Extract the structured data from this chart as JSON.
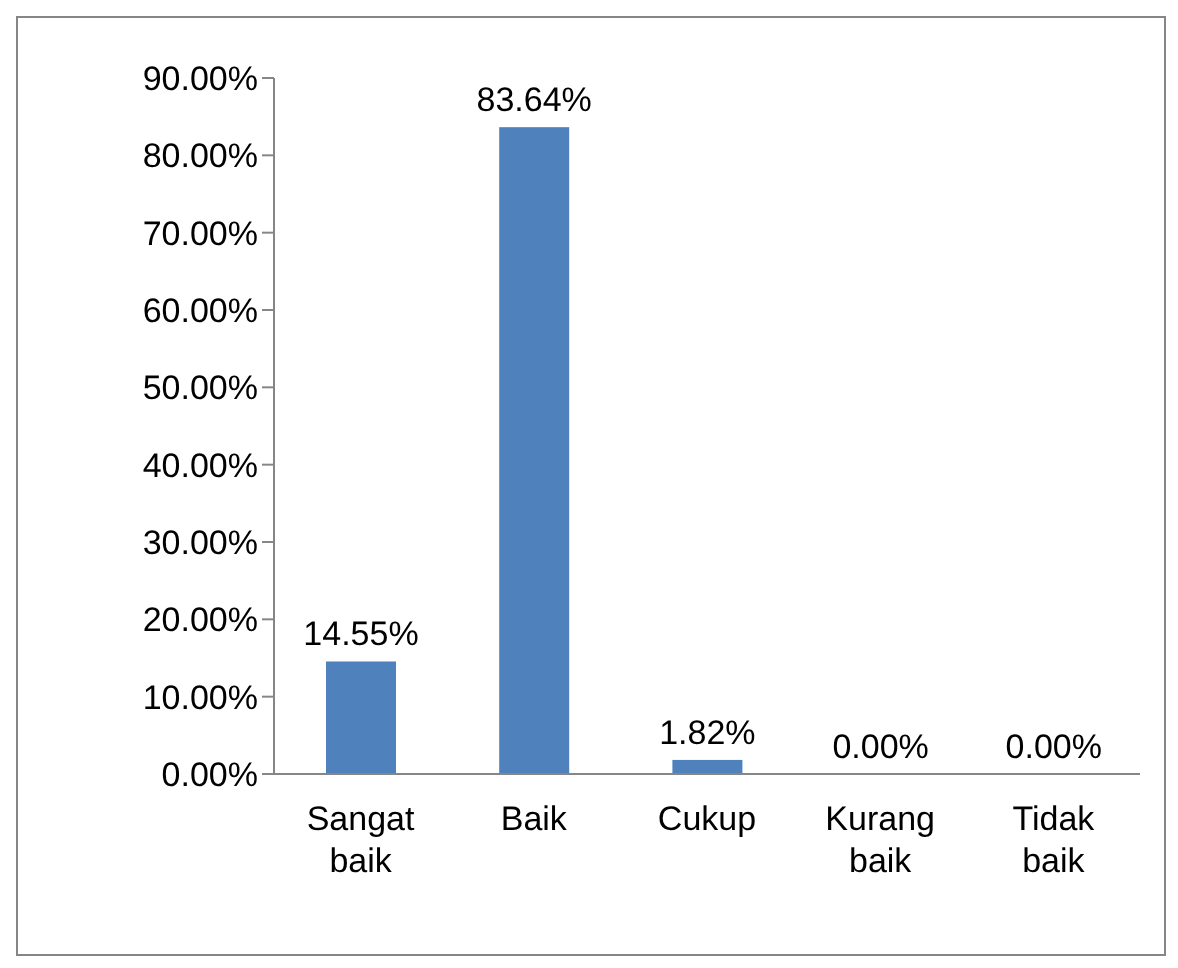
{
  "chart_data": {
    "type": "bar",
    "categories": [
      "Sangat baik",
      "Baik",
      "Cukup",
      "Kurang baik",
      "Tidak baik"
    ],
    "values": [
      14.55,
      83.64,
      1.82,
      0,
      0
    ],
    "value_labels": [
      "14.55%",
      "83.64%",
      "1.82%",
      "0.00%",
      "0.00%"
    ],
    "color": "#4f81bd",
    "ylim": [
      0,
      90
    ],
    "yticks": [
      {
        "value": 0,
        "label": "0.00%"
      },
      {
        "value": 10,
        "label": "10.00%"
      },
      {
        "value": 20,
        "label": "20.00%"
      },
      {
        "value": 30,
        "label": "30.00%"
      },
      {
        "value": 40,
        "label": "40.00%"
      },
      {
        "value": 50,
        "label": "50.00%"
      },
      {
        "value": 60,
        "label": "60.00%"
      },
      {
        "value": 70,
        "label": "70.00%"
      },
      {
        "value": 80,
        "label": "80.00%"
      },
      {
        "value": 90,
        "label": "90.00%"
      }
    ],
    "grid": false,
    "legend": false
  }
}
